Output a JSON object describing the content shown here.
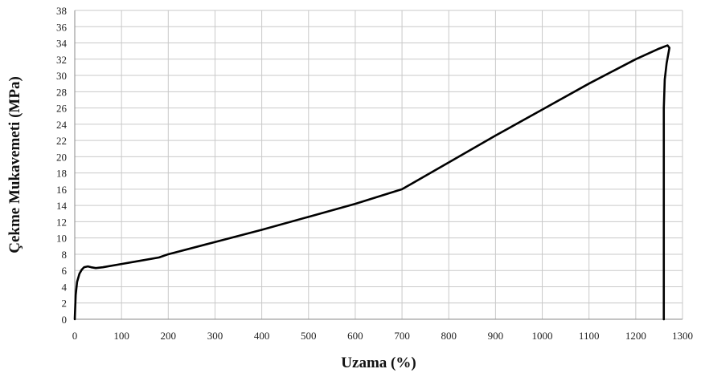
{
  "chart_data": {
    "type": "line",
    "xlabel": "Uzama (%)",
    "ylabel": "Çekme Mukavemeti (MPa)",
    "xlim": [
      0,
      1300
    ],
    "ylim": [
      0,
      38
    ],
    "x_ticks": [
      0,
      100,
      200,
      300,
      400,
      500,
      600,
      700,
      800,
      900,
      1000,
      1100,
      1200,
      1300
    ],
    "y_ticks": [
      0,
      2,
      4,
      6,
      8,
      10,
      12,
      14,
      16,
      18,
      20,
      22,
      24,
      26,
      28,
      30,
      32,
      34,
      36,
      38
    ],
    "grid": true,
    "legend": "none",
    "colors": {
      "line": "#000000",
      "grid": "#c9c9c9"
    },
    "series": [
      {
        "points": [
          [
            0,
            0
          ],
          [
            2,
            3.0
          ],
          [
            5,
            4.6
          ],
          [
            10,
            5.6
          ],
          [
            15,
            6.1
          ],
          [
            20,
            6.4
          ],
          [
            28,
            6.5
          ],
          [
            35,
            6.4
          ],
          [
            45,
            6.3
          ],
          [
            60,
            6.4
          ],
          [
            100,
            6.8
          ],
          [
            140,
            7.2
          ],
          [
            180,
            7.6
          ],
          [
            200,
            8.0
          ],
          [
            300,
            9.5
          ],
          [
            400,
            11.0
          ],
          [
            500,
            12.6
          ],
          [
            600,
            14.2
          ],
          [
            700,
            16.0
          ],
          [
            800,
            19.3
          ],
          [
            900,
            22.6
          ],
          [
            1000,
            25.8
          ],
          [
            1100,
            29.0
          ],
          [
            1200,
            32.0
          ],
          [
            1250,
            33.3
          ],
          [
            1268,
            33.7
          ],
          [
            1272,
            33.4
          ],
          [
            1266,
            31.5
          ],
          [
            1262,
            29.5
          ],
          [
            1260,
            26
          ],
          [
            1260,
            0
          ]
        ]
      }
    ]
  }
}
